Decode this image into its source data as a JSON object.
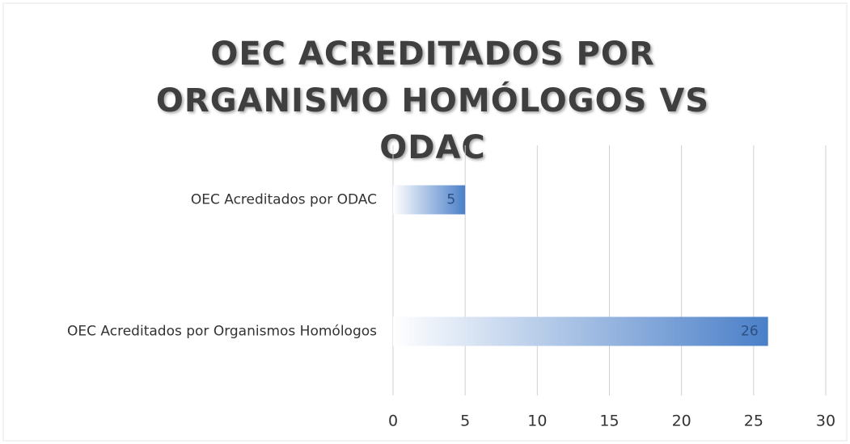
{
  "chart_data": {
    "type": "bar",
    "orientation": "horizontal",
    "title": "OEC ACREDITADOS POR ORGANISMO HOMÓLOGOS VS ODAC",
    "categories": [
      "OEC Acreditados por ODAC",
      "OEC Acreditados por Organismos Homólogos"
    ],
    "values": [
      5,
      26
    ],
    "color": "#4a7fc8",
    "xlim": [
      0,
      30
    ],
    "xticks": [
      0,
      5,
      10,
      15,
      20,
      25,
      30
    ],
    "grid": true
  }
}
